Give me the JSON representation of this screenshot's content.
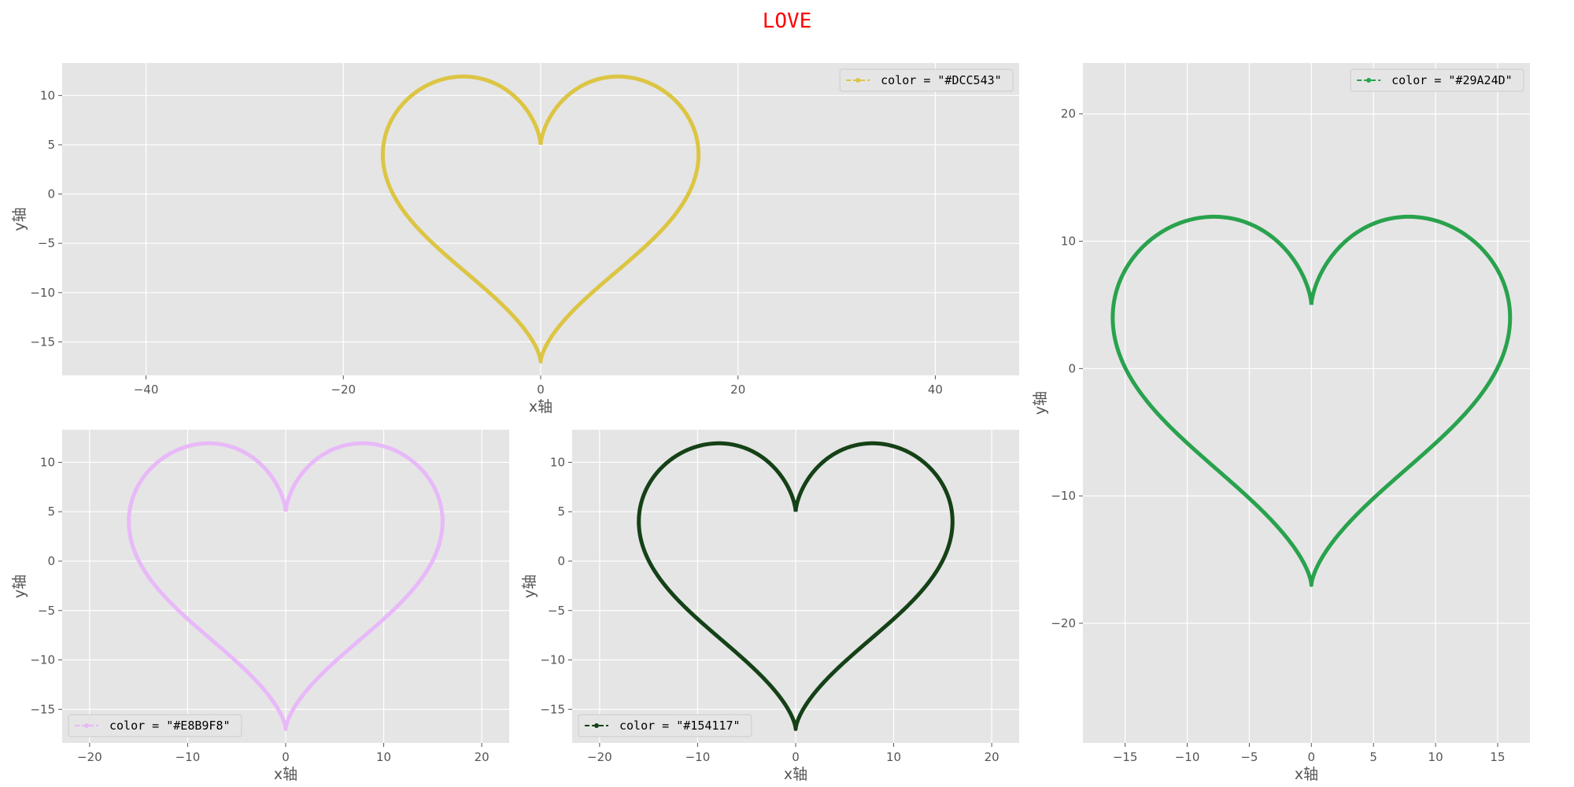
{
  "suptitle": "LOVE",
  "chart_data": [
    {
      "type": "line",
      "xlim": [
        -48.5,
        48.5
      ],
      "ylim": [
        -18.4,
        13.3
      ],
      "xticks": [
        -40,
        -20,
        0,
        20,
        40
      ],
      "yticks": [
        -15,
        -10,
        -5,
        0,
        5,
        10
      ],
      "xlabel": "x轴",
      "ylabel": "y轴",
      "grid": true,
      "legend_position": "upper-right",
      "series": [
        {
          "name": "color = \"#DCC543\"",
          "color": "#DCC543",
          "curve": "heart: x = 16·sin³t, y = 13·cos t − 5·cos 2t − 2·cos 3t − cos 4t"
        }
      ]
    },
    {
      "type": "line",
      "xlim": [
        -18.4,
        17.6
      ],
      "ylim": [
        -29.4,
        24.0
      ],
      "xticks": [
        -15,
        -10,
        -5,
        0,
        5,
        10,
        15
      ],
      "yticks": [
        -20,
        -10,
        0,
        10,
        20
      ],
      "xlabel": "x轴",
      "ylabel": "y轴",
      "grid": true,
      "legend_position": "upper-right",
      "series": [
        {
          "name": "color = \"#29A24D\"",
          "color": "#29A24D",
          "curve": "heart: x = 16·sin³t, y = 13·cos t − 5·cos 2t − 2·cos 3t − cos 4t"
        }
      ]
    },
    {
      "type": "line",
      "xlim": [
        -22.8,
        22.8
      ],
      "ylim": [
        -18.4,
        13.3
      ],
      "xticks": [
        -20,
        -10,
        0,
        10,
        20
      ],
      "yticks": [
        -15,
        -10,
        -5,
        0,
        5,
        10
      ],
      "xlabel": "x轴",
      "ylabel": "y轴",
      "grid": true,
      "legend_position": "lower-left",
      "series": [
        {
          "name": "color = \"#E8B9F8\"",
          "color": "#E8B9F8",
          "curve": "heart: x = 16·sin³t, y = 13·cos t − 5·cos 2t − 2·cos 3t − cos 4t"
        }
      ]
    },
    {
      "type": "line",
      "xlim": [
        -22.8,
        22.8
      ],
      "ylim": [
        -18.4,
        13.3
      ],
      "xticks": [
        -20,
        -10,
        0,
        10,
        20
      ],
      "yticks": [
        -15,
        -10,
        -5,
        0,
        5,
        10
      ],
      "xlabel": "x轴",
      "ylabel": "y轴",
      "grid": true,
      "legend_position": "lower-left",
      "series": [
        {
          "name": "color = \"#154117\"",
          "color": "#154117",
          "curve": "heart: x = 16·sin³t, y = 13·cos t − 5·cos 2t − 2·cos 3t − cos 4t"
        }
      ]
    }
  ]
}
